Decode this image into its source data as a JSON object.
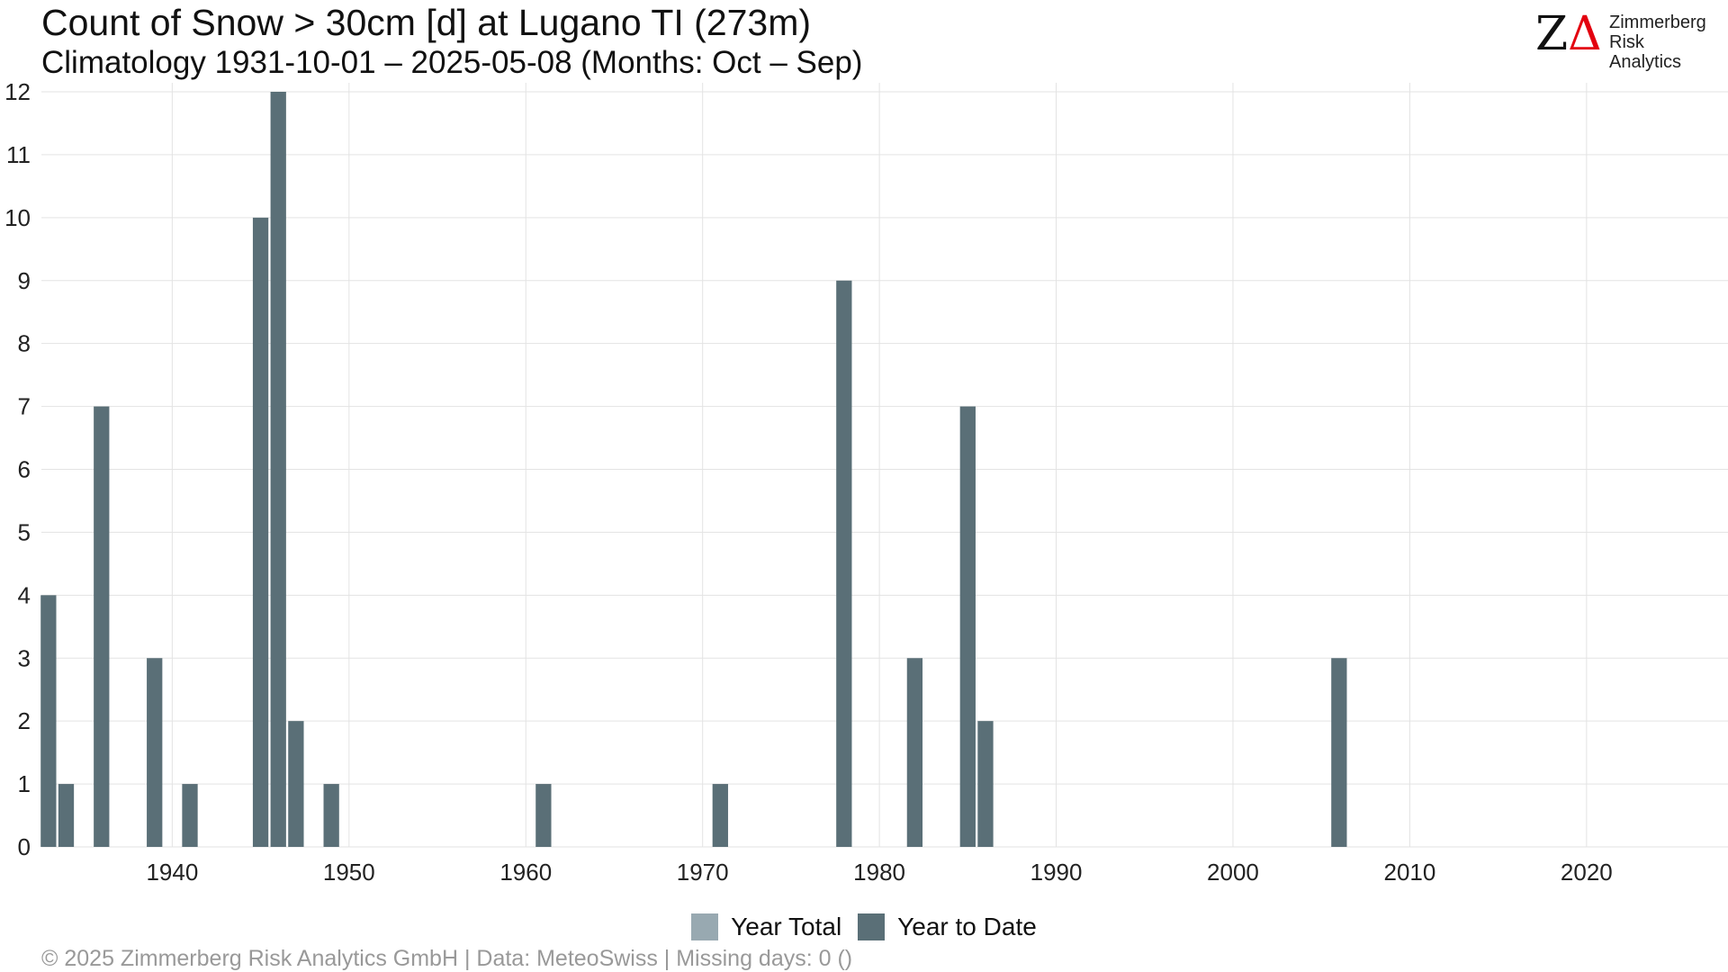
{
  "header": {
    "title": "Count of Snow > 30cm [d] at Lugano  TI (273m)",
    "subtitle": "Climatology 1931-10-01 – 2025-05-08 (Months: Oct – Sep)"
  },
  "logo": {
    "mark_z": "Z",
    "mark_delta": "Δ",
    "line1": "Zimmerberg",
    "line2": "Risk Analytics",
    "accent_color": "#e3000f"
  },
  "footer": {
    "text": "©  2025 Zimmerberg Risk Analytics GmbH | Data: MeteoSwiss | Missing days: 0 ()"
  },
  "chart_data": {
    "type": "bar",
    "x_ticks": [
      1940,
      1950,
      1960,
      1970,
      1980,
      1990,
      2000,
      2010,
      2020
    ],
    "y_ticks": [
      0,
      1,
      2,
      3,
      4,
      5,
      6,
      7,
      8,
      9,
      10,
      11,
      12
    ],
    "xlim": [
      1932,
      2026
    ],
    "ylim": [
      0,
      12
    ],
    "grid": true,
    "legend_position": "bottom",
    "series": [
      {
        "name": "Year Total",
        "color": "#98a9b1",
        "points": []
      },
      {
        "name": "Year to Date",
        "color": "#5a6f77",
        "points": [
          {
            "x": 1933,
            "y": 4
          },
          {
            "x": 1934,
            "y": 1
          },
          {
            "x": 1936,
            "y": 7
          },
          {
            "x": 1939,
            "y": 3
          },
          {
            "x": 1941,
            "y": 1
          },
          {
            "x": 1945,
            "y": 10
          },
          {
            "x": 1946,
            "y": 12
          },
          {
            "x": 1947,
            "y": 2
          },
          {
            "x": 1949,
            "y": 1
          },
          {
            "x": 1961,
            "y": 1
          },
          {
            "x": 1971,
            "y": 1
          },
          {
            "x": 1978,
            "y": 9
          },
          {
            "x": 1982,
            "y": 3
          },
          {
            "x": 1985,
            "y": 7
          },
          {
            "x": 1986,
            "y": 2
          },
          {
            "x": 2006,
            "y": 3
          }
        ]
      }
    ]
  }
}
